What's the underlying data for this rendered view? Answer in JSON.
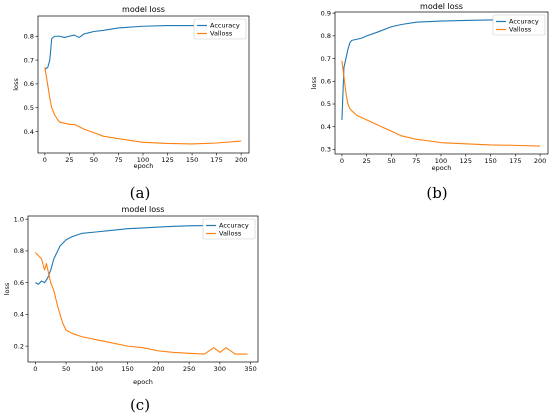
{
  "chart_data": [
    {
      "panel": "(a)",
      "type": "line",
      "title": "model loss",
      "xlabel": "epoch",
      "ylabel": "loss",
      "xlim": [
        -7,
        208
      ],
      "ylim": [
        0.31,
        0.885
      ],
      "xticks": [
        "0",
        "25",
        "50",
        "75",
        "100",
        "125",
        "150",
        "175",
        "200"
      ],
      "yticks": [
        "0.4",
        "0.5",
        "0.6",
        "0.7",
        "0.8"
      ],
      "grid": false,
      "legend": "top-right",
      "series": [
        {
          "name": "Accuracy",
          "color": "#1f77b4",
          "x": [
            0,
            3,
            5,
            7,
            10,
            15,
            20,
            25,
            30,
            35,
            40,
            45,
            50,
            60,
            75,
            100,
            125,
            150,
            175,
            200
          ],
          "y": [
            0.66,
            0.67,
            0.7,
            0.79,
            0.8,
            0.8,
            0.795,
            0.8,
            0.805,
            0.795,
            0.81,
            0.815,
            0.82,
            0.825,
            0.835,
            0.842,
            0.845,
            0.845,
            0.843,
            0.847
          ]
        },
        {
          "name": "Valloss",
          "color": "#ff7f0e",
          "x": [
            0,
            2,
            5,
            7,
            10,
            13,
            15,
            20,
            25,
            30,
            35,
            40,
            50,
            60,
            75,
            100,
            125,
            150,
            175,
            200
          ],
          "y": [
            0.67,
            0.62,
            0.54,
            0.5,
            0.47,
            0.45,
            0.44,
            0.435,
            0.43,
            0.43,
            0.42,
            0.41,
            0.395,
            0.38,
            0.37,
            0.355,
            0.35,
            0.348,
            0.352,
            0.36
          ]
        }
      ]
    },
    {
      "panel": "(b)",
      "type": "line",
      "title": "model loss",
      "xlabel": "epoch",
      "ylabel": "loss",
      "xlim": [
        -7,
        208
      ],
      "ylim": [
        0.28,
        0.905
      ],
      "xticks": [
        "0",
        "25",
        "50",
        "75",
        "100",
        "125",
        "150",
        "175",
        "200"
      ],
      "yticks": [
        "0.3",
        "0.4",
        "0.5",
        "0.6",
        "0.7",
        "0.8",
        "0.9"
      ],
      "grid": false,
      "legend": "top-right",
      "series": [
        {
          "name": "Accuracy",
          "color": "#1f77b4",
          "x": [
            0,
            2,
            4,
            6,
            8,
            10,
            15,
            20,
            25,
            35,
            50,
            60,
            75,
            100,
            125,
            150,
            175,
            200
          ],
          "y": [
            0.43,
            0.66,
            0.7,
            0.74,
            0.77,
            0.78,
            0.785,
            0.79,
            0.8,
            0.815,
            0.84,
            0.85,
            0.86,
            0.865,
            0.868,
            0.87,
            0.872,
            0.875
          ]
        },
        {
          "name": "Valloss",
          "color": "#ff7f0e",
          "x": [
            0,
            2,
            4,
            6,
            8,
            10,
            15,
            20,
            25,
            35,
            50,
            60,
            75,
            100,
            125,
            150,
            175,
            200
          ],
          "y": [
            0.69,
            0.62,
            0.55,
            0.5,
            0.48,
            0.47,
            0.45,
            0.44,
            0.43,
            0.41,
            0.38,
            0.36,
            0.345,
            0.33,
            0.325,
            0.32,
            0.318,
            0.315
          ]
        }
      ]
    },
    {
      "panel": "(c)",
      "type": "line",
      "title": "model loss",
      "xlabel": "epoch",
      "ylabel": "loss",
      "xlim": [
        -12,
        362
      ],
      "ylim": [
        0.1,
        1.02
      ],
      "xticks": [
        "0",
        "50",
        "100",
        "150",
        "200",
        "250",
        "300",
        "350"
      ],
      "yticks": [
        "0.2",
        "0.4",
        "0.6",
        "0.8",
        "1.0"
      ],
      "grid": false,
      "legend": "top-right",
      "series": [
        {
          "name": "Accuracy",
          "color": "#1f77b4",
          "x": [
            0,
            5,
            10,
            15,
            20,
            25,
            30,
            40,
            50,
            60,
            75,
            100,
            125,
            150,
            175,
            200,
            225,
            250,
            275,
            300,
            325,
            345
          ],
          "y": [
            0.6,
            0.59,
            0.61,
            0.6,
            0.63,
            0.68,
            0.75,
            0.83,
            0.87,
            0.89,
            0.91,
            0.92,
            0.93,
            0.94,
            0.945,
            0.95,
            0.955,
            0.958,
            0.96,
            0.96,
            0.962,
            0.962
          ]
        },
        {
          "name": "Valloss",
          "color": "#ff7f0e",
          "x": [
            0,
            5,
            10,
            15,
            18,
            22,
            25,
            30,
            35,
            40,
            45,
            50,
            60,
            75,
            100,
            125,
            150,
            175,
            200,
            225,
            250,
            275,
            290,
            300,
            310,
            325,
            345
          ],
          "y": [
            0.79,
            0.77,
            0.75,
            0.68,
            0.72,
            0.65,
            0.6,
            0.55,
            0.47,
            0.4,
            0.34,
            0.3,
            0.28,
            0.26,
            0.24,
            0.22,
            0.2,
            0.19,
            0.17,
            0.16,
            0.155,
            0.15,
            0.19,
            0.16,
            0.19,
            0.15,
            0.15
          ]
        }
      ]
    }
  ],
  "captions": [
    "(a)",
    "(b)",
    "(c)"
  ]
}
